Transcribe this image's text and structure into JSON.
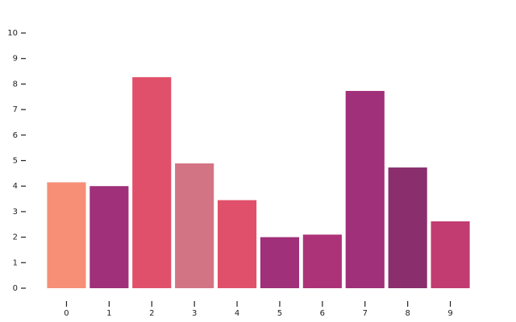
{
  "chart_data": {
    "type": "bar",
    "categories": [
      "0",
      "1",
      "2",
      "3",
      "4",
      "5",
      "6",
      "7",
      "8",
      "9"
    ],
    "values": [
      4.15,
      4.0,
      8.27,
      4.89,
      3.45,
      2.0,
      2.1,
      7.73,
      4.73,
      2.62
    ],
    "colors": [
      "#f78f76",
      "#a0307a",
      "#e0506a",
      "#d37484",
      "#e0506a",
      "#a0307a",
      "#ad3378",
      "#a0307a",
      "#8a2e6e",
      "#c23c72"
    ],
    "ylim": [
      0,
      10
    ],
    "yticks": [
      0,
      1,
      2,
      3,
      4,
      5,
      6,
      7,
      8,
      9,
      10
    ]
  }
}
